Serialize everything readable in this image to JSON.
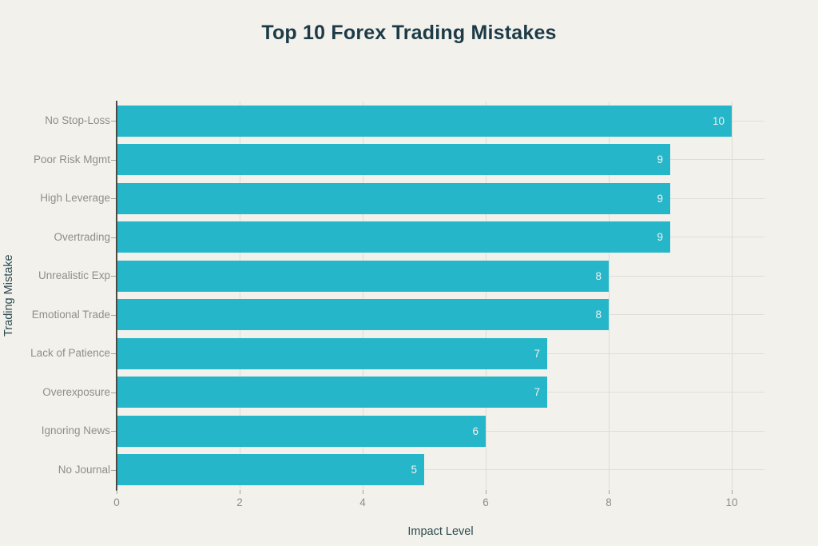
{
  "title": "Top 10 Forex Trading Mistakes",
  "chart_data": {
    "type": "bar",
    "orientation": "horizontal",
    "title": "Top 10 Forex Trading Mistakes",
    "categories": [
      "No Stop-Loss",
      "Poor Risk Mgmt",
      "High Leverage",
      "Overtrading",
      "Unrealistic Exp",
      "Emotional Trade",
      "Lack of Patience",
      "Overexposure",
      "Ignoring News",
      "No Journal"
    ],
    "values": [
      10,
      9,
      9,
      9,
      8,
      8,
      7,
      7,
      6,
      5
    ],
    "xlabel": "Impact Level",
    "ylabel": "Trading Mistake",
    "xlim": [
      0,
      10
    ],
    "xticks": [
      0,
      2,
      4,
      6,
      8,
      10
    ],
    "grid": true,
    "value_labels_position": "inside-end",
    "colors": {
      "background": "#f2f1ec",
      "bar": "#26b6c9",
      "title_text": "#1c3b47",
      "axis_title_text": "#2c4a50",
      "tick_text": "#8f8f89",
      "gridline": "#dfded6",
      "axis_line": "#4b4b45",
      "value_text": "#f2f1ec"
    }
  }
}
